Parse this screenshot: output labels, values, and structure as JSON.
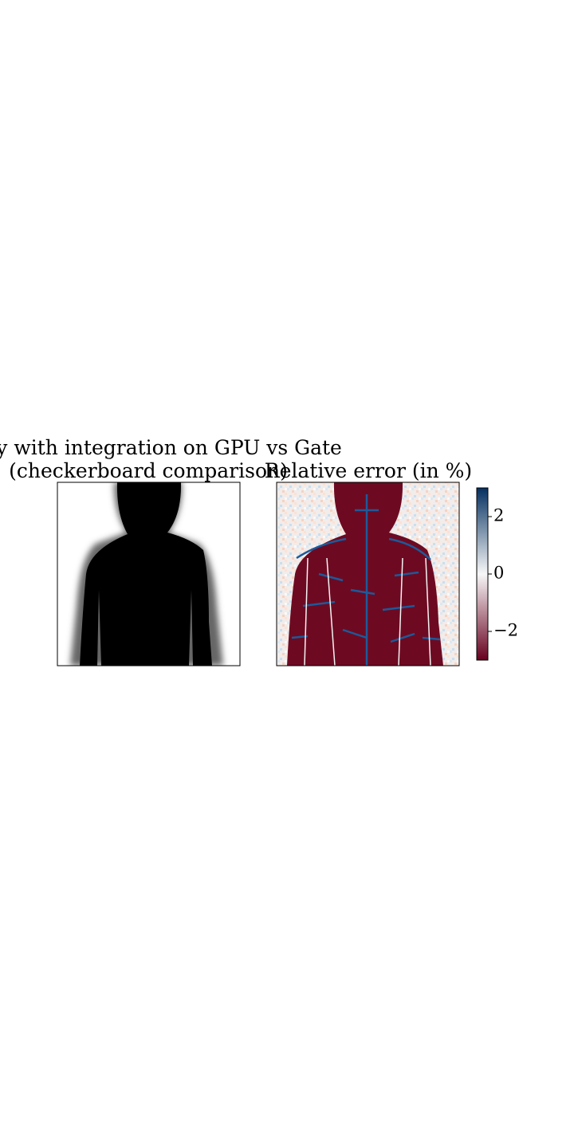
{
  "chart_data": [
    {
      "type": "image",
      "title": [
        "XRay with integration on GPU vs Gate",
        "(checkerboard comparison)"
      ]
    },
    {
      "type": "heatmap",
      "title": [
        "Relative error (in %)"
      ],
      "clim": [
        -3,
        3
      ],
      "colors": [
        "#67001f",
        "#f7f7f7",
        "#053061"
      ],
      "colorbar_ticks": [
        {
          "value": -2,
          "label": "−2"
        },
        0,
        2
      ]
    }
  ]
}
